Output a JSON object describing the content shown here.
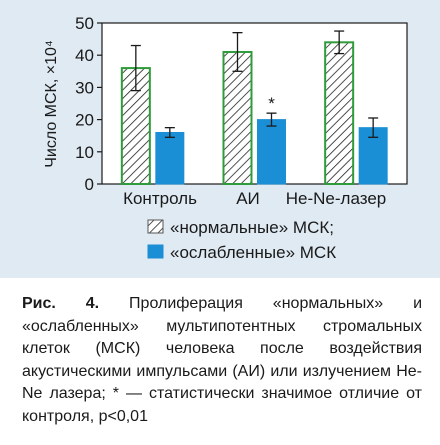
{
  "chart_data": {
    "type": "bar",
    "ylabel": "Число МСК, ×10⁴",
    "ylim": [
      0,
      50
    ],
    "yticks": [
      0,
      10,
      20,
      30,
      40,
      50
    ],
    "categories": [
      "Контроль",
      "АИ",
      "He-Ne-лазер"
    ],
    "series": [
      {
        "name": "«нормальные» МСК;",
        "values": [
          36,
          41,
          44
        ],
        "errors": [
          7,
          6,
          3.5
        ],
        "fill": "hatch",
        "color": "#2e9c3a"
      },
      {
        "name": "«ослабленные» МСК",
        "values": [
          16,
          20,
          17.5
        ],
        "errors": [
          1.5,
          2,
          3
        ],
        "fill": "solid",
        "color": "#1a8fd6"
      }
    ],
    "annotations": [
      {
        "category": "АИ",
        "series": 1,
        "text": "*"
      }
    ],
    "grid": false,
    "legend": "bottom"
  },
  "caption": {
    "label": "Рис. 4.",
    "text": "Пролиферация «нормальных» и «ослабленных» мультипотентных стромальных клеток (МСК) человека после воздействия акустическими импульсами (АИ) или излучением He-Ne лазера; * — статистически значимое отличие от контроля, p<0,01"
  }
}
